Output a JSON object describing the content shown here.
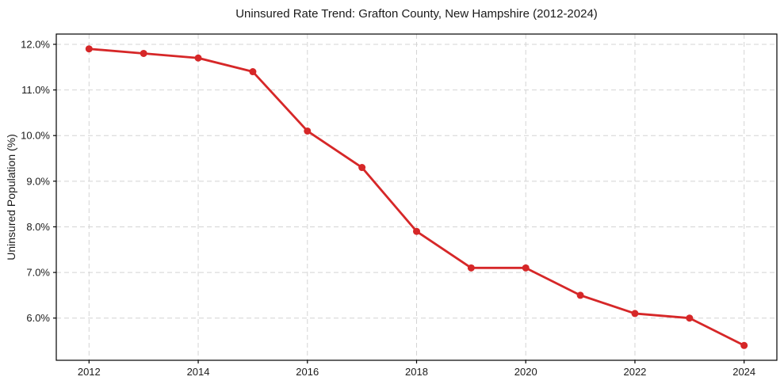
{
  "chart_data": {
    "type": "line",
    "title": "Uninsured Rate Trend: Grafton County, New Hampshire (2012-2024)",
    "xlabel": "",
    "ylabel": "Uninsured Population (%)",
    "x": [
      2012,
      2013,
      2014,
      2015,
      2016,
      2017,
      2018,
      2019,
      2020,
      2021,
      2022,
      2023,
      2024
    ],
    "values": [
      11.9,
      11.8,
      11.7,
      11.4,
      10.1,
      9.3,
      7.9,
      7.1,
      7.1,
      6.5,
      6.1,
      6.0,
      5.4
    ],
    "xlim": [
      2011.4,
      2024.6
    ],
    "ylim": [
      5.075,
      12.225
    ],
    "x_ticks": {
      "values": [
        2012,
        2014,
        2016,
        2018,
        2020,
        2022,
        2024
      ],
      "labels": [
        "2012",
        "2014",
        "2016",
        "2018",
        "2020",
        "2022",
        "2024"
      ]
    },
    "y_ticks": {
      "values": [
        6,
        7,
        8,
        9,
        10,
        11,
        12
      ],
      "labels": [
        "6.0%",
        "7.0%",
        "8.0%",
        "9.0%",
        "10.0%",
        "11.0%",
        "12.0%"
      ]
    },
    "grid": true,
    "grid_style": "dashed",
    "legend": false,
    "marker": "circle",
    "colors": {
      "line": "#d62728",
      "marker": "#d62728",
      "grid": "#d4d4d4",
      "spine": "#000000",
      "text": "#1a1a1a",
      "background": "#ffffff"
    }
  }
}
